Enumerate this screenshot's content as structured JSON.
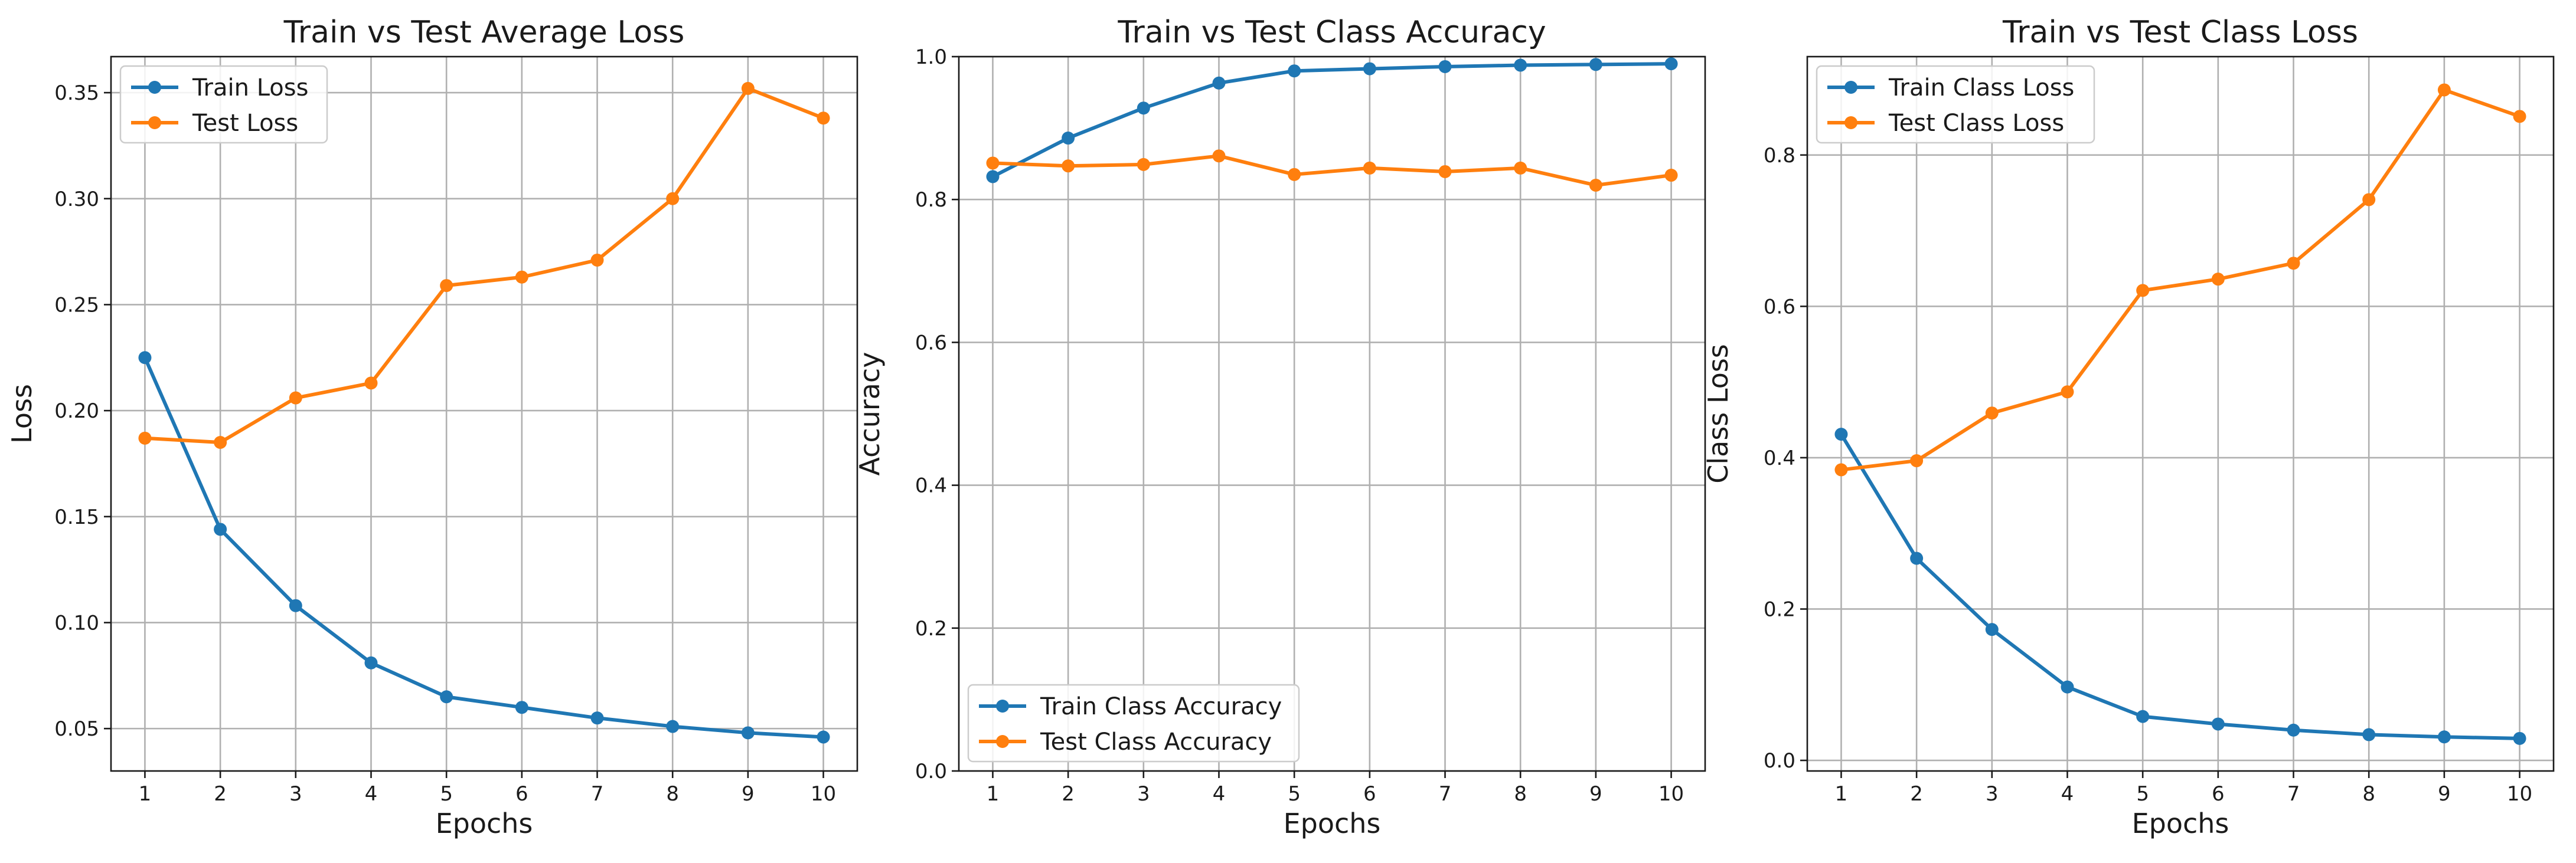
{
  "colors": {
    "train": "#1f77b4",
    "test": "#ff7f0e"
  },
  "chart_data": [
    {
      "type": "line",
      "title": "Train vs Test Average Loss",
      "xlabel": "Epochs",
      "ylabel": "Loss",
      "x": [
        1,
        2,
        3,
        4,
        5,
        6,
        7,
        8,
        9,
        10
      ],
      "ylim": [
        0.03,
        0.367
      ],
      "yticks": [
        0.05,
        0.1,
        0.15,
        0.2,
        0.25,
        0.3,
        0.35
      ],
      "ytick_labels": [
        "0.05",
        "0.10",
        "0.15",
        "0.20",
        "0.25",
        "0.30",
        "0.35"
      ],
      "grid": true,
      "legend_position": "upper-left",
      "series": [
        {
          "name": "Train Loss",
          "color": "#1f77b4",
          "values": [
            0.225,
            0.144,
            0.108,
            0.081,
            0.065,
            0.06,
            0.055,
            0.051,
            0.048,
            0.046
          ]
        },
        {
          "name": "Test Loss",
          "color": "#ff7f0e",
          "values": [
            0.187,
            0.185,
            0.206,
            0.213,
            0.259,
            0.263,
            0.271,
            0.3,
            0.352,
            0.338
          ]
        }
      ]
    },
    {
      "type": "line",
      "title": "Train vs Test Class Accuracy",
      "xlabel": "Epochs",
      "ylabel": "Accuracy",
      "x": [
        1,
        2,
        3,
        4,
        5,
        6,
        7,
        8,
        9,
        10
      ],
      "ylim": [
        0.0,
        1.0
      ],
      "yticks": [
        0.0,
        0.2,
        0.4,
        0.6,
        0.8,
        1.0
      ],
      "ytick_labels": [
        "0.0",
        "0.2",
        "0.4",
        "0.6",
        "0.8",
        "1.0"
      ],
      "grid": true,
      "legend_position": "lower-left",
      "series": [
        {
          "name": "Train Class Accuracy",
          "color": "#1f77b4",
          "values": [
            0.832,
            0.886,
            0.928,
            0.963,
            0.98,
            0.983,
            0.986,
            0.988,
            0.989,
            0.99
          ]
        },
        {
          "name": "Test Class Accuracy",
          "color": "#ff7f0e",
          "values": [
            0.851,
            0.847,
            0.849,
            0.861,
            0.835,
            0.844,
            0.839,
            0.844,
            0.82,
            0.834
          ]
        }
      ]
    },
    {
      "type": "line",
      "title": "Train vs Test Class Loss",
      "xlabel": "Epochs",
      "ylabel": "Class Loss",
      "x": [
        1,
        2,
        3,
        4,
        5,
        6,
        7,
        8,
        9,
        10
      ],
      "ylim": [
        -0.014,
        0.93
      ],
      "yticks": [
        0.0,
        0.2,
        0.4,
        0.6,
        0.8
      ],
      "ytick_labels": [
        "0.0",
        "0.2",
        "0.4",
        "0.6",
        "0.8"
      ],
      "grid": true,
      "legend_position": "upper-left",
      "series": [
        {
          "name": "Train Class Loss",
          "color": "#1f77b4",
          "values": [
            0.431,
            0.267,
            0.173,
            0.097,
            0.058,
            0.048,
            0.04,
            0.034,
            0.031,
            0.029
          ]
        },
        {
          "name": "Test Class Loss",
          "color": "#ff7f0e",
          "values": [
            0.384,
            0.396,
            0.459,
            0.487,
            0.621,
            0.636,
            0.657,
            0.741,
            0.886,
            0.851
          ]
        }
      ]
    }
  ]
}
